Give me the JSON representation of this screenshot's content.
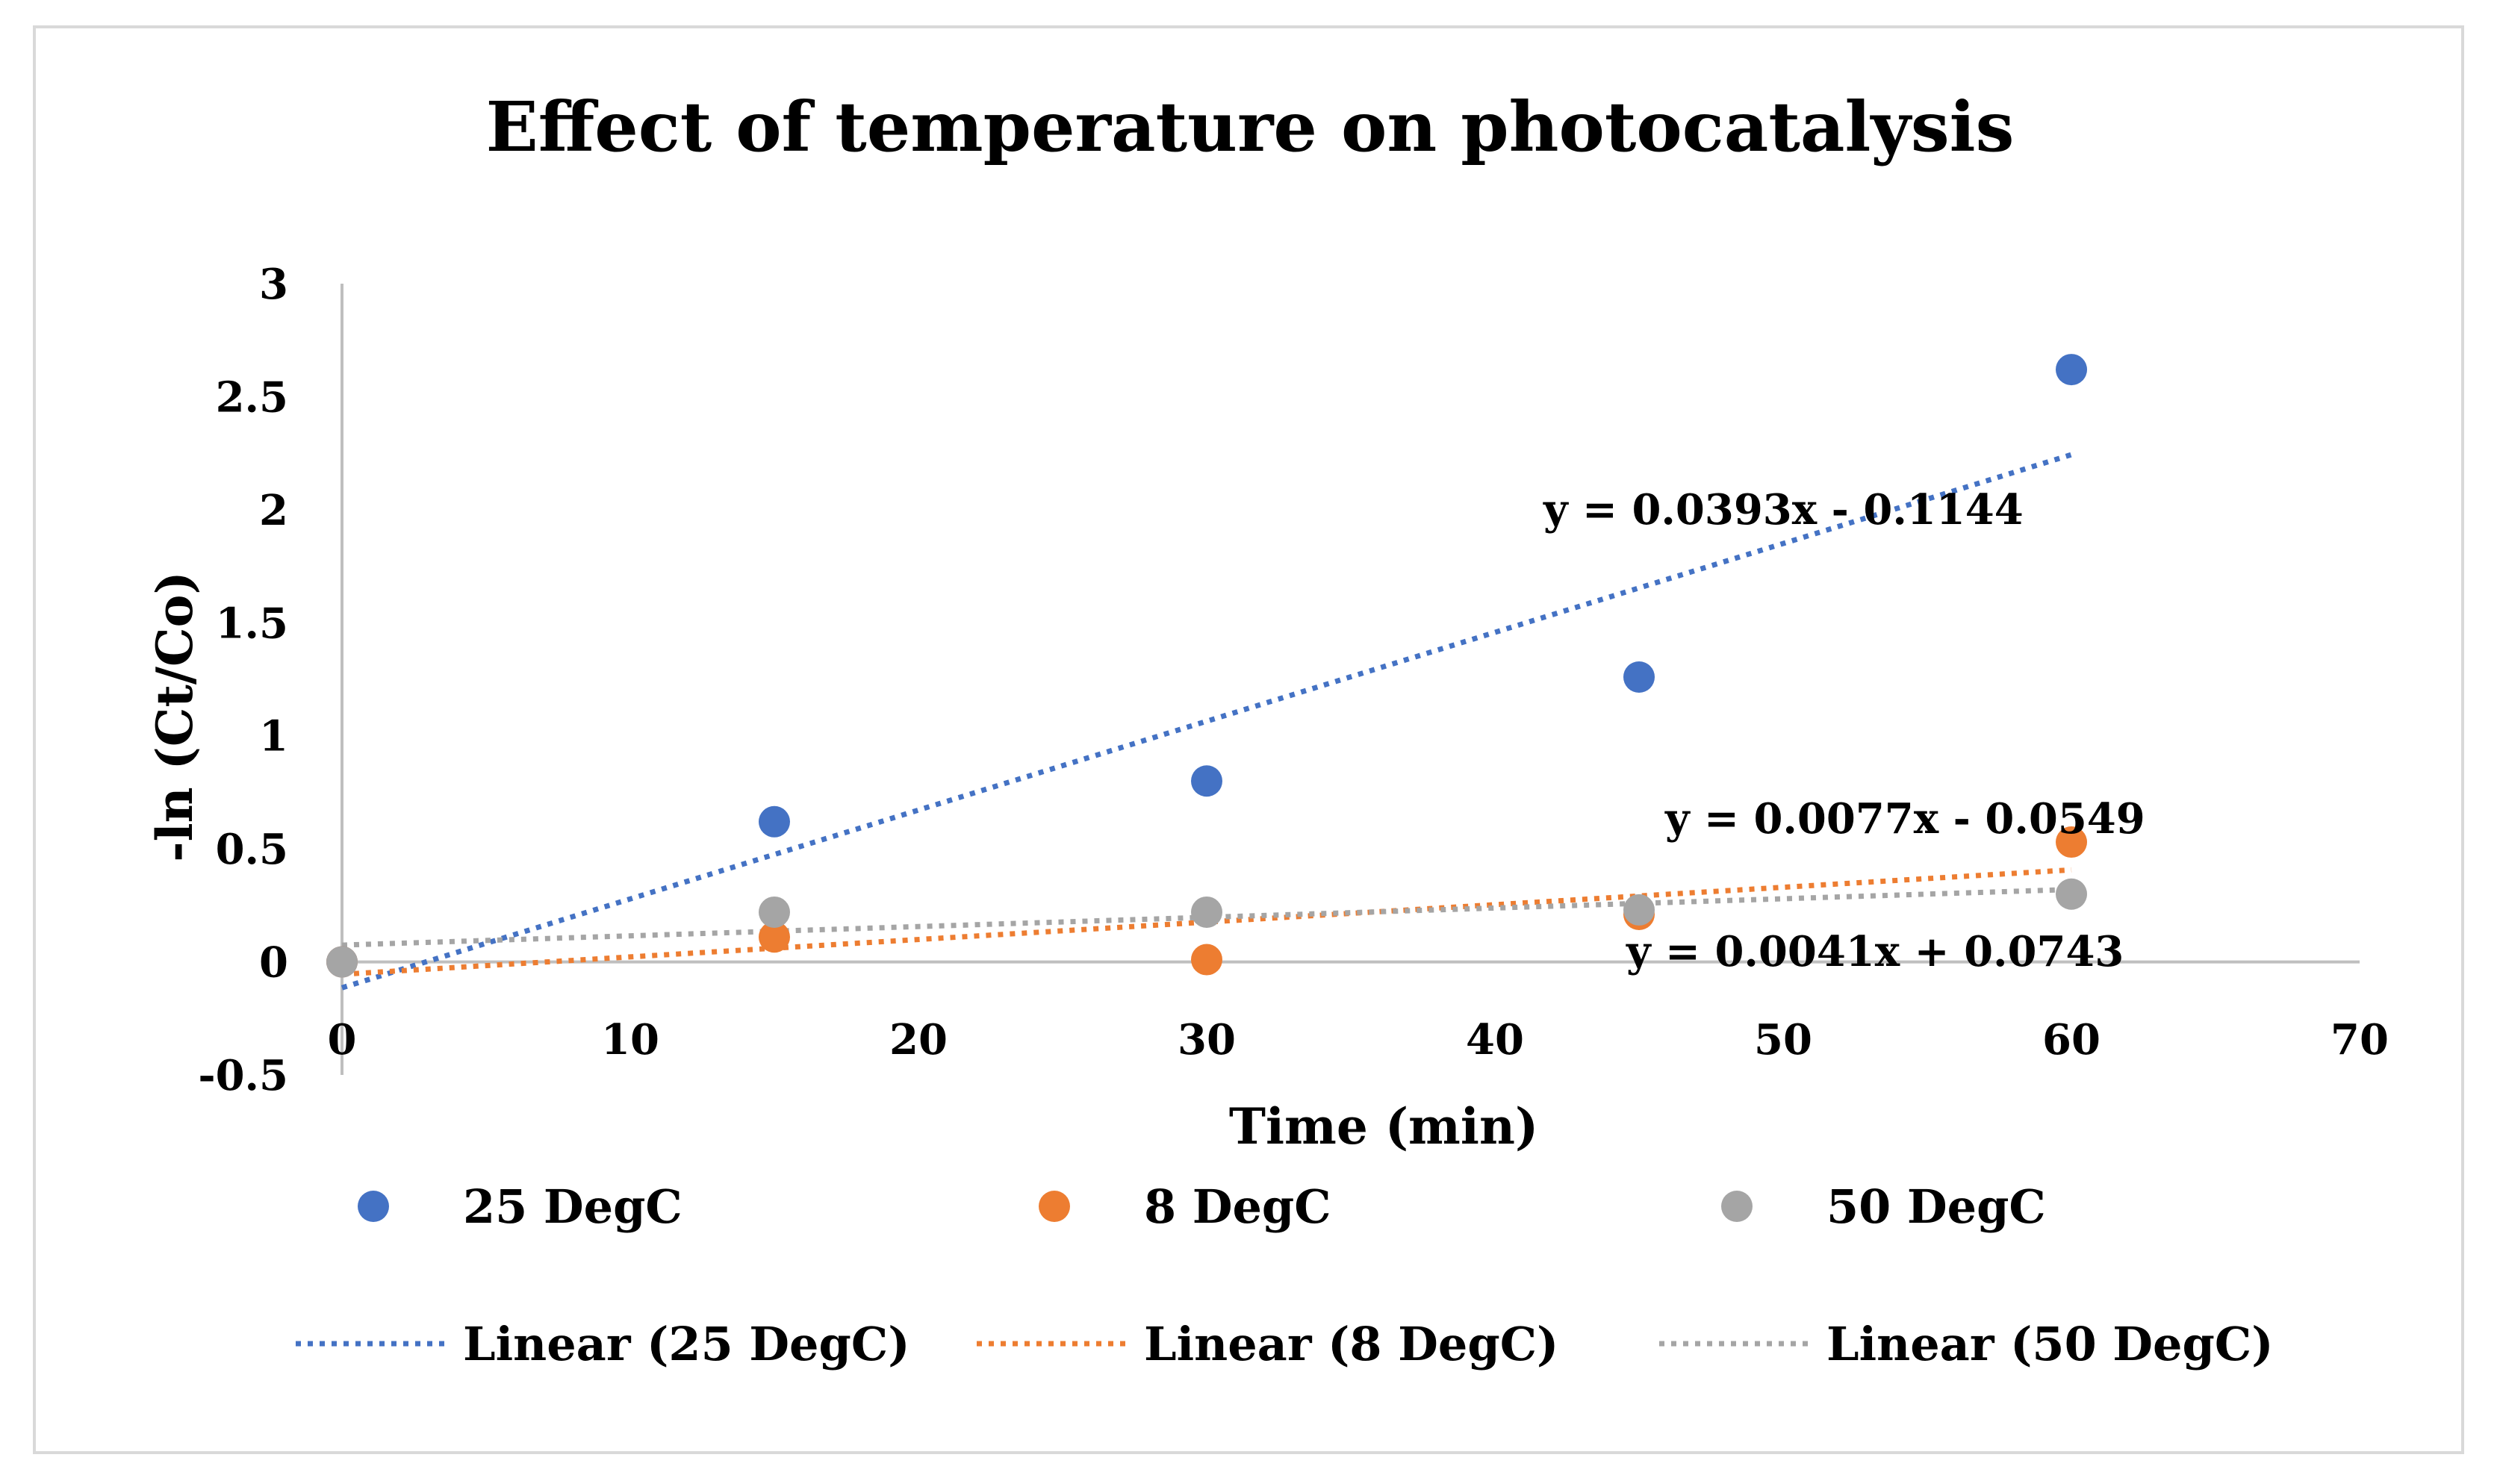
{
  "chart_data": {
    "type": "scatter",
    "title": "Effect of temperature on photocatalysis",
    "xlabel": "Time (min)",
    "ylabel": "-ln (Ct/Co)",
    "xlim": [
      0,
      70
    ],
    "ylim": [
      -0.5,
      3
    ],
    "x_ticks": [
      0,
      10,
      20,
      30,
      40,
      50,
      60,
      70
    ],
    "x_tick_labels": [
      "0",
      "10",
      "20",
      "30",
      "40",
      "50",
      "60",
      "70"
    ],
    "y_ticks": [
      -0.5,
      0,
      0.5,
      1,
      1.5,
      2,
      2.5,
      3
    ],
    "y_tick_labels": [
      "-0.5",
      "0",
      "0.5",
      "1",
      "1.5",
      "2",
      "2.5",
      "3"
    ],
    "grid": false,
    "legend_position": "bottom",
    "series": [
      {
        "name": "25 DegC",
        "color": "#4472c4",
        "x": [
          0,
          15,
          30,
          45,
          60
        ],
        "y": [
          0,
          0.62,
          0.8,
          1.26,
          2.62
        ],
        "trendline": {
          "name": "Linear (25 DegC)",
          "slope": 0.0393,
          "intercept": -0.1144,
          "equation": "y = 0.0393x - 0.1144"
        }
      },
      {
        "name": "8 DegC",
        "color": "#ed7d31",
        "x": [
          0,
          15,
          30,
          45,
          60
        ],
        "y": [
          0,
          0.11,
          0.01,
          0.21,
          0.53
        ],
        "trendline": {
          "name": "Linear (8 DegC)",
          "slope": 0.0077,
          "intercept": -0.0549,
          "equation": "y = 0.0077x - 0.0549"
        }
      },
      {
        "name": "50 DegC",
        "color": "#a5a5a5",
        "x": [
          0,
          15,
          30,
          45,
          60
        ],
        "y": [
          0,
          0.22,
          0.22,
          0.23,
          0.3
        ],
        "trendline": {
          "name": "Linear (50 DegC)",
          "slope": 0.0041,
          "intercept": 0.0743,
          "equation": "y = 0.0041x + 0.0743"
        }
      }
    ]
  }
}
